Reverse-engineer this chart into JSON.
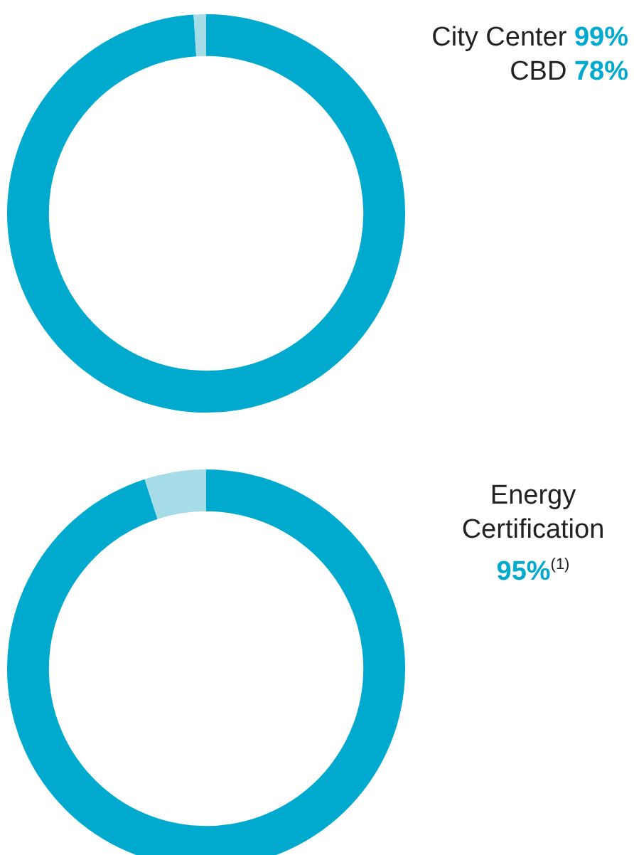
{
  "chart_data": [
    {
      "type": "donut",
      "categories": [
        null,
        null
      ],
      "values": [
        99,
        1
      ],
      "colors": [
        "#00a9ce",
        "#a6dbe8"
      ],
      "annotations": [
        "City Center 99%",
        "CBD 78%"
      ]
    },
    {
      "type": "donut",
      "categories": [
        null,
        null
      ],
      "values": [
        95,
        5
      ],
      "colors": [
        "#00a9ce",
        "#a6dbe8"
      ],
      "annotations": [
        "Energy Certification",
        "95%$^{(1)}$"
      ]
    }
  ]
}
